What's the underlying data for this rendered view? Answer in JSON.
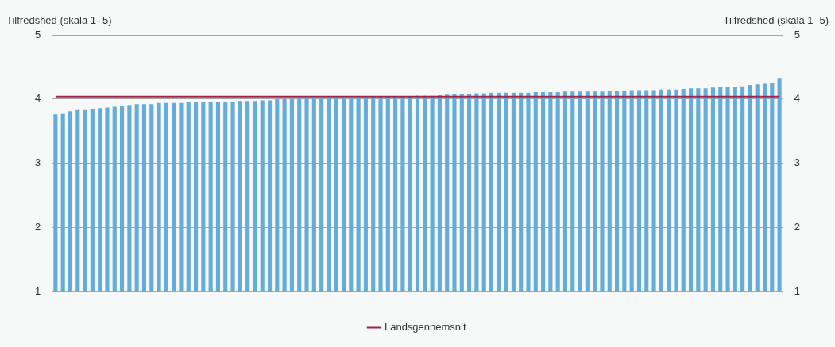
{
  "chart_data": {
    "type": "bar",
    "ylabel": "Tilfredshed (skala 1- 5)",
    "y2label": "Tilfredshed (skala 1- 5)",
    "categories": [
      null,
      null,
      null,
      null,
      null,
      null,
      null,
      null,
      null,
      null,
      null,
      null,
      null,
      null,
      null,
      null,
      null,
      null,
      null,
      null,
      null,
      null,
      null,
      null,
      null,
      null,
      null,
      null,
      null,
      null,
      null,
      null,
      null,
      null,
      null,
      null,
      null,
      null,
      null,
      null,
      null,
      null,
      null,
      null,
      null,
      null,
      null,
      null,
      null,
      null,
      null,
      null,
      null,
      null,
      null,
      null,
      null,
      null,
      null,
      null,
      null,
      null,
      null,
      null,
      null,
      null,
      null,
      null,
      null,
      null,
      null,
      null,
      null,
      null,
      null,
      null,
      null,
      null,
      null,
      null,
      null,
      null,
      null,
      null,
      null,
      null,
      null,
      null,
      null,
      null,
      null,
      null,
      null,
      null,
      null,
      null,
      null,
      null,
      null
    ],
    "series": [
      {
        "color": "#65acd9",
        "values": [
          3.76,
          3.78,
          3.81,
          3.84,
          3.84,
          3.85,
          3.86,
          3.87,
          3.88,
          3.9,
          3.91,
          3.92,
          3.92,
          3.92,
          3.94,
          3.94,
          3.94,
          3.94,
          3.95,
          3.95,
          3.95,
          3.95,
          3.95,
          3.96,
          3.96,
          3.97,
          3.97,
          3.97,
          3.98,
          3.98,
          4.0,
          4.0,
          4.0,
          4.01,
          4.01,
          4.01,
          4.01,
          4.01,
          4.01,
          4.02,
          4.02,
          4.02,
          4.03,
          4.04,
          4.04,
          4.04,
          4.04,
          4.04,
          4.04,
          4.05,
          4.05,
          4.05,
          4.06,
          4.07,
          4.08,
          4.08,
          4.08,
          4.09,
          4.09,
          4.1,
          4.1,
          4.1,
          4.1,
          4.1,
          4.1,
          4.11,
          4.11,
          4.11,
          4.11,
          4.12,
          4.12,
          4.12,
          4.12,
          4.12,
          4.12,
          4.13,
          4.13,
          4.13,
          4.14,
          4.14,
          4.14,
          4.14,
          4.15,
          4.15,
          4.15,
          4.16,
          4.17,
          4.17,
          4.17,
          4.18,
          4.19,
          4.19,
          4.19,
          4.2,
          4.22,
          4.23,
          4.24,
          4.25,
          4.33
        ]
      },
      {
        "type": "line",
        "name": "Landsgennemsnit",
        "color": "#a3234a",
        "values": [
          4.04,
          4.04,
          4.04,
          4.04,
          4.04,
          4.04,
          4.04,
          4.04,
          4.04,
          4.04,
          4.04,
          4.04,
          4.04,
          4.04,
          4.04,
          4.04,
          4.04,
          4.04,
          4.04,
          4.04,
          4.04,
          4.04,
          4.04,
          4.04,
          4.04,
          4.04,
          4.04,
          4.04,
          4.04,
          4.04,
          4.04,
          4.04,
          4.04,
          4.04,
          4.04,
          4.04,
          4.04,
          4.04,
          4.04,
          4.04,
          4.04,
          4.04,
          4.04,
          4.04,
          4.04,
          4.04,
          4.04,
          4.04,
          4.04,
          4.04,
          4.04,
          4.04,
          4.04,
          4.04,
          4.04,
          4.04,
          4.04,
          4.04,
          4.04,
          4.04,
          4.04,
          4.04,
          4.04,
          4.04,
          4.04,
          4.04,
          4.04,
          4.04,
          4.04,
          4.04,
          4.04,
          4.04,
          4.04,
          4.04,
          4.04,
          4.04,
          4.04,
          4.04,
          4.04,
          4.04,
          4.04,
          4.04,
          4.04,
          4.04,
          4.04,
          4.04,
          4.04,
          4.04,
          4.04,
          4.04,
          4.04,
          4.04,
          4.04,
          4.04,
          4.04,
          4.04,
          4.04,
          4.04,
          4.04
        ]
      }
    ],
    "ylim": [
      1,
      5
    ],
    "yticks": [
      1,
      2,
      3,
      4,
      5
    ],
    "y2lim": [
      1,
      5
    ],
    "y2ticks": [
      1,
      2,
      3,
      4,
      5
    ],
    "grid": "y",
    "legend": "bottom",
    "marker": "none"
  }
}
